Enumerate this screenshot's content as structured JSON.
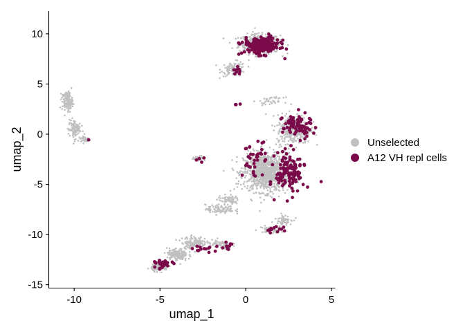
{
  "chart_data": {
    "type": "scatter",
    "title": "",
    "xlabel": "umap_1",
    "ylabel": "umap_2",
    "xlim": [
      -11.5,
      5.2
    ],
    "ylim": [
      -15.3,
      12.2
    ],
    "xticks": [
      -10,
      -5,
      0,
      5
    ],
    "yticks": [
      10,
      5,
      0,
      -5,
      -10,
      -15
    ],
    "xtick_labels": [
      "-10",
      "-5",
      "0",
      "5"
    ],
    "ytick_labels": [
      "10",
      "5",
      "0",
      "-5",
      "-10",
      "-15"
    ],
    "grid": false,
    "legend_position": "right",
    "series": [
      {
        "name": "Unselected",
        "color": "#c0c0c0",
        "clusters": [
          {
            "cx": 0.8,
            "cy": 9.0,
            "sx": 1.0,
            "sy": 0.8,
            "n": 420
          },
          {
            "cx": -0.7,
            "cy": 6.5,
            "sx": 0.6,
            "sy": 0.6,
            "n": 90
          },
          {
            "cx": 1.2,
            "cy": -3.8,
            "sx": 1.1,
            "sy": 1.6,
            "n": 1100
          },
          {
            "cx": 2.8,
            "cy": 0.5,
            "sx": 0.8,
            "sy": 1.2,
            "n": 350
          },
          {
            "cx": -10.4,
            "cy": 3.3,
            "sx": 0.25,
            "sy": 0.8,
            "n": 150
          },
          {
            "cx": -10.0,
            "cy": 0.5,
            "sx": 0.3,
            "sy": 0.8,
            "n": 100
          },
          {
            "cx": -9.4,
            "cy": -0.5,
            "sx": 0.3,
            "sy": 0.3,
            "n": 30
          },
          {
            "cx": -1.0,
            "cy": -6.5,
            "sx": 0.5,
            "sy": 0.4,
            "n": 60
          },
          {
            "cx": -1.5,
            "cy": -7.5,
            "sx": 0.7,
            "sy": 0.4,
            "n": 100
          },
          {
            "cx": -2.7,
            "cy": -2.4,
            "sx": 0.3,
            "sy": 0.2,
            "n": 25
          },
          {
            "cx": -3.0,
            "cy": -10.8,
            "sx": 0.6,
            "sy": 0.5,
            "n": 150
          },
          {
            "cx": -4.0,
            "cy": -12.0,
            "sx": 0.5,
            "sy": 0.5,
            "n": 160
          },
          {
            "cx": -5.0,
            "cy": -13.2,
            "sx": 0.4,
            "sy": 0.35,
            "n": 140
          },
          {
            "cx": -1.5,
            "cy": -11.0,
            "sx": 0.6,
            "sy": 0.4,
            "n": 60
          },
          {
            "cx": 1.5,
            "cy": -9.5,
            "sx": 0.6,
            "sy": 0.3,
            "n": 45
          },
          {
            "cx": 2.2,
            "cy": -8.5,
            "sx": 0.4,
            "sy": 0.4,
            "n": 60
          },
          {
            "cx": 1.5,
            "cy": 3.3,
            "sx": 0.6,
            "sy": 0.3,
            "n": 40
          }
        ]
      },
      {
        "name": "A12 VH repl cells",
        "color": "#7b0a4a",
        "clusters": [
          {
            "cx": 0.9,
            "cy": 8.8,
            "sx": 0.9,
            "sy": 0.7,
            "n": 190
          },
          {
            "cx": -0.6,
            "cy": 6.3,
            "sx": 0.3,
            "sy": 0.4,
            "n": 8
          },
          {
            "cx": 2.6,
            "cy": -3.8,
            "sx": 0.7,
            "sy": 1.7,
            "n": 130
          },
          {
            "cx": 3.0,
            "cy": 0.8,
            "sx": 0.7,
            "sy": 1.0,
            "n": 75
          },
          {
            "cx": 0.5,
            "cy": -2.5,
            "sx": 0.6,
            "sy": 1.5,
            "n": 35
          },
          {
            "cx": -2.7,
            "cy": -2.5,
            "sx": 0.4,
            "sy": 0.2,
            "n": 4
          },
          {
            "cx": -0.4,
            "cy": 3.0,
            "sx": 0.2,
            "sy": 0.2,
            "n": 3
          },
          {
            "cx": 1.7,
            "cy": -9.5,
            "sx": 0.5,
            "sy": 0.3,
            "n": 12
          },
          {
            "cx": -1.0,
            "cy": -11.2,
            "sx": 0.5,
            "sy": 0.3,
            "n": 10
          },
          {
            "cx": -2.5,
            "cy": -11.5,
            "sx": 0.5,
            "sy": 0.4,
            "n": 12
          },
          {
            "cx": -4.8,
            "cy": -13.0,
            "sx": 0.4,
            "sy": 0.35,
            "n": 25
          },
          {
            "cx": -9.2,
            "cy": -0.7,
            "sx": 0.1,
            "sy": 0.1,
            "n": 1
          }
        ]
      }
    ]
  }
}
